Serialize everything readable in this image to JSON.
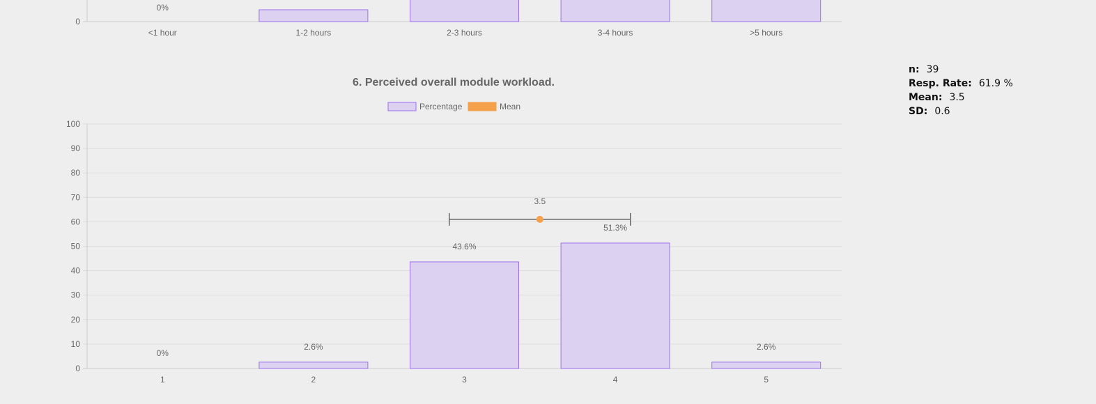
{
  "stats": {
    "n_label": "n:",
    "n_value": "39",
    "resp_label": "Resp. Rate:",
    "resp_value": "61.9 %",
    "mean_label": "Mean:",
    "mean_value": "3.5",
    "sd_label": "SD:",
    "sd_value": "0.6"
  },
  "chart_data": [
    {
      "type": "bar",
      "partial": true,
      "categories": [
        "<1 hour",
        "1-2 hours",
        "2-3 hours",
        "3-4 hours",
        ">5 hours"
      ],
      "visible_ticks": [
        "0"
      ],
      "visible_labels": [
        "0%",
        "",
        "",
        "",
        ""
      ],
      "colors": {
        "bar_fill": "#dcd1f0",
        "bar_border": "#9c6ef0"
      }
    },
    {
      "type": "bar",
      "title": "6. Perceived overall module workload.",
      "categories": [
        "1",
        "2",
        "3",
        "4",
        "5"
      ],
      "series": [
        {
          "name": "Percentage",
          "values": [
            0,
            2.6,
            43.6,
            51.3,
            2.6
          ],
          "labels": [
            "0%",
            "2.6%",
            "43.6%",
            "51.3%",
            "2.6%"
          ]
        },
        {
          "name": "Mean",
          "mean": 3.5,
          "sd": 0.6,
          "label": "3.5",
          "y_position": 61
        }
      ],
      "ylim": [
        0,
        100
      ],
      "yticks": [
        "0",
        "10",
        "20",
        "30",
        "40",
        "50",
        "60",
        "70",
        "80",
        "90",
        "100"
      ],
      "grid": true,
      "legend": "top-center",
      "colors": {
        "bar_fill": "#dcd1f0",
        "bar_border": "#9c6ef0",
        "mean": "#f5a04a",
        "error_bar": "#666666",
        "grid": "#dddddd"
      }
    }
  ]
}
